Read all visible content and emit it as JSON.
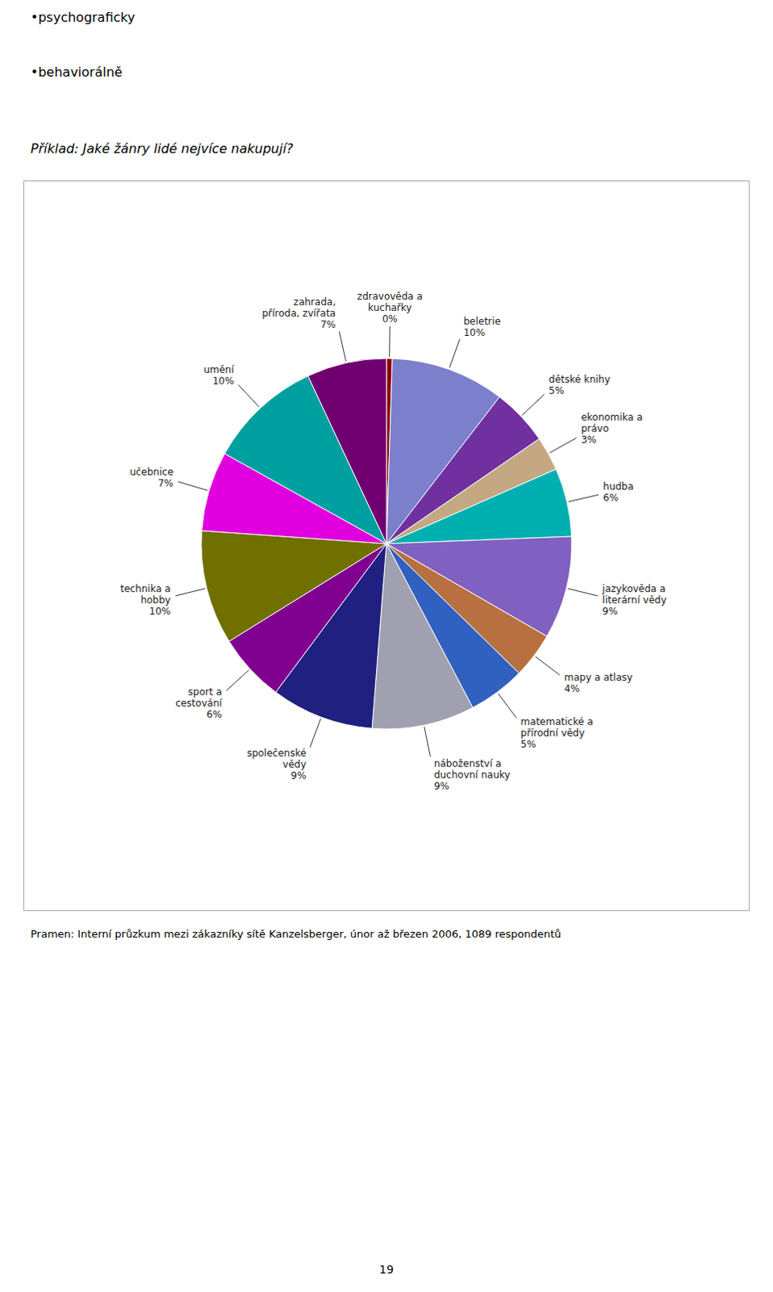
{
  "chart_data": {
    "type": "pie",
    "subtitle": "Příklad: Jaké žánry lidé nejvíce nakupují?",
    "annotations": [
      "•psychograficky",
      "•behaviorálně",
      "Pramen: Interní průzkum mezi zákazníky sítě Kanzelsberger, únor až březen 2006, 1089 respondentů",
      "19"
    ],
    "categories": [
      "zdravověda a\nkuchařky",
      "beletrie",
      "dětské knihy",
      "ekonomika a\nprávo",
      "hudba",
      "jazykověda a\nliterární vědy",
      "mapy a atlasy",
      "matematické a\npřírodní vědy",
      "náboženství a\nduchovní nauky",
      "společenské\nvědy",
      "sport a\ncestování",
      "technika a\nhobby",
      "učebnice",
      "umění",
      "zahrada,\npříroda, zvířata"
    ],
    "values": [
      0.5,
      10,
      5,
      3,
      6,
      9,
      4,
      5,
      9,
      9,
      6,
      10,
      7,
      10,
      7
    ],
    "value_labels": [
      "0%",
      "10%",
      "5%",
      "3%",
      "6%",
      "9%",
      "4%",
      "5%",
      "9%",
      "9%",
      "6%",
      "10%",
      "7%",
      "10%",
      "7%"
    ],
    "colors": [
      "#8B0000",
      "#7B7FCC",
      "#7030A0",
      "#C4A882",
      "#00B0B0",
      "#8060C0",
      "#B87040",
      "#3060C0",
      "#A0A0B0",
      "#202080",
      "#800090",
      "#707000",
      "#E000E0",
      "#00A0A0",
      "#700070"
    ],
    "data_labels": true
  }
}
